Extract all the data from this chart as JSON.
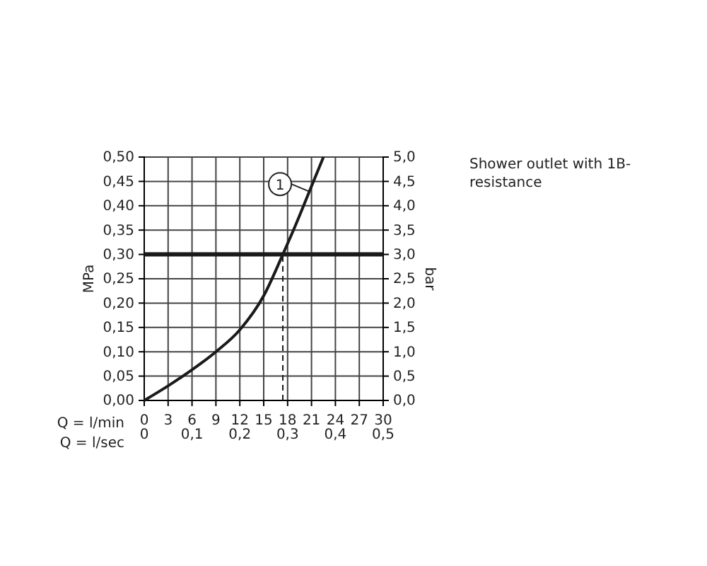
{
  "chart_data": {
    "type": "line",
    "xlabel": "Q = l/min",
    "x2label": "Q = l/sec",
    "ylabel": "MPa",
    "y2label": "bar",
    "xlim": [
      0,
      30
    ],
    "xticks": [
      0,
      3,
      6,
      9,
      12,
      15,
      18,
      21,
      24,
      27,
      30
    ],
    "x2lim": [
      0,
      0.5
    ],
    "x2ticks": [
      0,
      {
        "value": 0.1,
        "label": "0,1"
      },
      {
        "value": 0.2,
        "label": "0,2"
      },
      {
        "value": 0.3,
        "label": "0,3"
      },
      {
        "value": 0.4,
        "label": "0,4"
      },
      {
        "value": 0.5,
        "label": "0,5"
      }
    ],
    "ylim": [
      0,
      0.5
    ],
    "yticks": [
      {
        "value": 0,
        "label": "0,00"
      },
      {
        "value": 0.05,
        "label": "0,05"
      },
      {
        "value": 0.1,
        "label": "0,10"
      },
      {
        "value": 0.15,
        "label": "0,15"
      },
      {
        "value": 0.2,
        "label": "0,20"
      },
      {
        "value": 0.25,
        "label": "0,25"
      },
      {
        "value": 0.3,
        "label": "0,30"
      },
      {
        "value": 0.35,
        "label": "0,35"
      },
      {
        "value": 0.4,
        "label": "0,40"
      },
      {
        "value": 0.45,
        "label": "0,45"
      },
      {
        "value": 0.5,
        "label": "0,50"
      }
    ],
    "y2lim": [
      0,
      5
    ],
    "y2ticks": [
      {
        "value": 0,
        "label": "0,0"
      },
      {
        "value": 0.5,
        "label": "0,5"
      },
      {
        "value": 1,
        "label": "1,0"
      },
      {
        "value": 1.5,
        "label": "1,5"
      },
      {
        "value": 2,
        "label": "2,0"
      },
      {
        "value": 2.5,
        "label": "2,5"
      },
      {
        "value": 3,
        "label": "3,0"
      },
      {
        "value": 3.5,
        "label": "3,5"
      },
      {
        "value": 4,
        "label": "4,0"
      },
      {
        "value": 4.5,
        "label": "4,5"
      },
      {
        "value": 5,
        "label": "5,0"
      }
    ],
    "series": [
      {
        "color": "#1a1a1a",
        "x": [
          0,
          3,
          6,
          9,
          12,
          15,
          17.4,
          19,
          21,
          22.5
        ],
        "values": [
          0,
          0.03,
          0.063,
          0.1,
          0.145,
          0.215,
          0.3,
          0.36,
          0.44,
          0.5
        ]
      }
    ],
    "grid": true,
    "line_style": "solid",
    "ref_lines": [
      {
        "axis": "y",
        "value": 0.3,
        "color": "#1a1a1a",
        "line_style": "solid"
      },
      {
        "axis": "x",
        "value": 17.4,
        "color": "#1a1a1a",
        "line_style": "dashed"
      }
    ],
    "annotations": [
      {
        "text": "1",
        "x": 20.6,
        "y": 0.43
      },
      "Shower outlet with 1B-resistance"
    ]
  }
}
